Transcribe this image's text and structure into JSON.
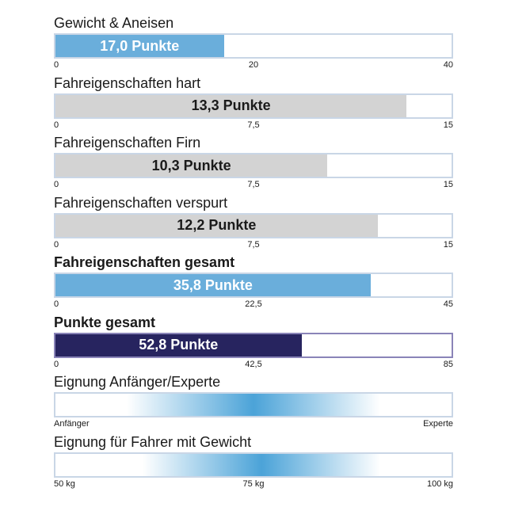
{
  "colors": {
    "blue": "#6aaedb",
    "gray": "#d3d3d3",
    "navy": "#27245f",
    "gradient": "#4ba3d8"
  },
  "chart_data": {
    "type": "bar",
    "series": [
      {
        "title": "Gewicht & Aneisen",
        "value": 17.0,
        "label": "17,0 Punkte",
        "max": 40,
        "ticks": [
          "0",
          "20",
          "40"
        ],
        "color": "blue",
        "bold": false
      },
      {
        "title": "Fahreigenschaften hart",
        "value": 13.3,
        "label": "13,3 Punkte",
        "max": 15,
        "ticks": [
          "0",
          "7,5",
          "15"
        ],
        "color": "gray",
        "bold": false
      },
      {
        "title": "Fahreigenschaften Firn",
        "value": 10.3,
        "label": "10,3 Punkte",
        "max": 15,
        "ticks": [
          "0",
          "7,5",
          "15"
        ],
        "color": "gray",
        "bold": false
      },
      {
        "title": "Fahreigenschaften verspurt",
        "value": 12.2,
        "label": "12,2 Punkte",
        "max": 15,
        "ticks": [
          "0",
          "7,5",
          "15"
        ],
        "color": "gray",
        "bold": false
      },
      {
        "title": "Fahreigenschaften gesamt",
        "value": 35.8,
        "label": "35,8 Punkte",
        "max": 45,
        "ticks": [
          "0",
          "22,5",
          "45"
        ],
        "color": "blue",
        "bold": true
      },
      {
        "title": "Punkte gesamt",
        "value": 52.8,
        "label": "52,8 Punkte",
        "max": 85,
        "ticks": [
          "0",
          "42,5",
          "85"
        ],
        "color": "navy",
        "bold": true
      }
    ],
    "scales": [
      {
        "title": "Eignung Anfänger/Experte",
        "ticks": [
          "Anfänger",
          "",
          "Experte"
        ],
        "peak": 0.5,
        "spread": 0.32
      },
      {
        "title": "Eignung für Fahrer mit Gewicht",
        "ticks": [
          "50 kg",
          "75 kg",
          "100 kg"
        ],
        "peak": 0.52,
        "spread": 0.3
      }
    ]
  }
}
